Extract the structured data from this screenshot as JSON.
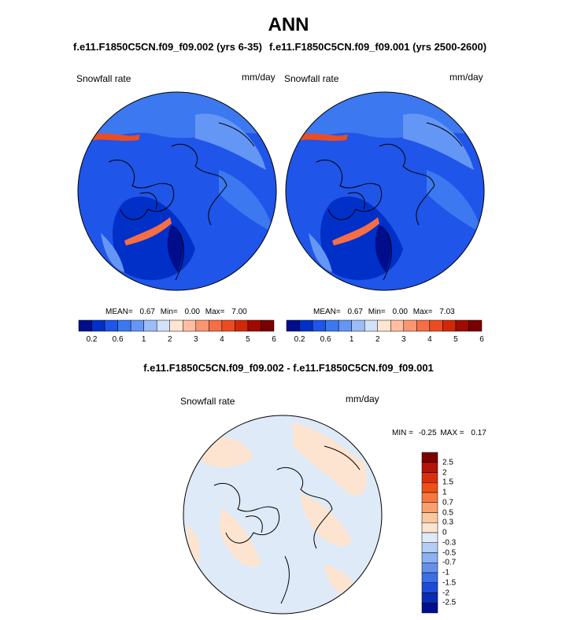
{
  "main_title": "ANN",
  "left_panel": {
    "case_title": "f.e11.F1850C5CN.f09_f09.002 (yrs 6-35)",
    "field_label": "Snowfall rate",
    "units": "mm/day",
    "stats": {
      "mean_label": "MEAN=",
      "mean": "0.67",
      "min_label": "Min=",
      "min": "0.00",
      "max_label": "Max=",
      "max": "7.00"
    }
  },
  "right_panel": {
    "case_title": "f.e11.F1850C5CN.f09_f09.001 (yrs 2500-2600)",
    "field_label": "Snowfall rate",
    "units": "mm/day",
    "stats": {
      "mean_label": "MEAN=",
      "mean": "0.67",
      "min_label": "Min=",
      "min": "0.00",
      "max_label": "Max=",
      "max": "7.03"
    }
  },
  "horizontal_colorbar": {
    "colors": [
      "#000e8c",
      "#0030c8",
      "#1f55e8",
      "#3c78f0",
      "#6496f5",
      "#9bbcf8",
      "#d2e1fa",
      "#ffe6d2",
      "#ffbea0",
      "#fa9672",
      "#f56e46",
      "#ec4c22",
      "#d2280a",
      "#a00a00",
      "#780000"
    ],
    "tick_labels": [
      "0.2",
      "0.6",
      "1",
      "2",
      "3",
      "4",
      "5",
      "6"
    ]
  },
  "diff_panel": {
    "title": "f.e11.F1850C5CN.f09_f09.002 - f.e11.F1850C5CN.f09_f09.001",
    "field_label": "Snowfall rate",
    "units": "mm/day",
    "stats": {
      "min_label": "MIN =",
      "min": "-0.25",
      "max_label": "MAX =",
      "max": "0.17"
    }
  },
  "vertical_colorbar": {
    "colors": [
      "#7a0000",
      "#b4140a",
      "#d8300f",
      "#f05014",
      "#f57840",
      "#f8a070",
      "#fac8a0",
      "#fce4d0",
      "#dfeaf8",
      "#b4cdf5",
      "#8cb0f0",
      "#6490eb",
      "#3c6ee6",
      "#1e4cd8",
      "#0a2cb4",
      "#00108c"
    ],
    "tick_labels": [
      "2.5",
      "2",
      "1.5",
      "1",
      "0.7",
      "0.5",
      "0.3",
      "0",
      "-0.3",
      "-0.5",
      "-0.7",
      "-1",
      "-1.5",
      "-2",
      "-2.5"
    ]
  }
}
